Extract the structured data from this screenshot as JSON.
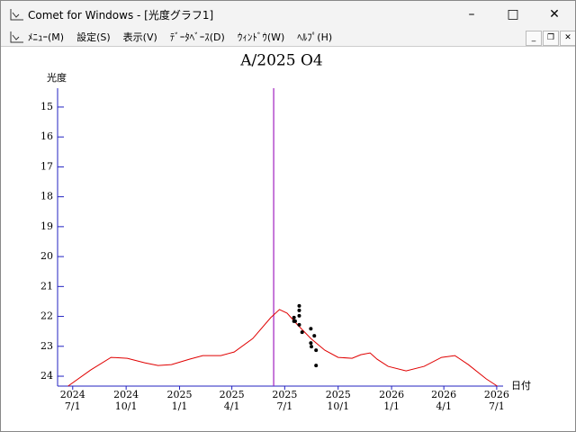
{
  "window": {
    "title": "Comet for Windows - [光度グラフ1]",
    "menu": [
      "ﾒﾆｭｰ(M)",
      "設定(S)",
      "表示(V)",
      "ﾃﾞｰﾀﾍﾞｰｽ(D)",
      "ｳｨﾝﾄﾞｳ(W)",
      "ﾍﾙﾌﾟ(H)"
    ]
  },
  "chart_data": {
    "type": "line",
    "title": "A/2025 O4",
    "y_label": "光度",
    "x_label": "日付",
    "color": "#e00000",
    "x": [
      "2024-06-23",
      "2024-08-01",
      "2024-09-05",
      "2024-10-03",
      "2024-11-02",
      "2024-11-25",
      "2024-12-18",
      "2025-01-18",
      "2025-02-10",
      "2025-03-13",
      "2025-04-05",
      "2025-05-07",
      "2025-06-07",
      "2025-06-22",
      "2025-07-05",
      "2025-07-23",
      "2025-08-15",
      "2025-09-08",
      "2025-10-01",
      "2025-10-25",
      "2025-11-09",
      "2025-11-25",
      "2025-12-07",
      "2025-12-26",
      "2026-01-26",
      "2026-02-26",
      "2026-03-28",
      "2026-04-20",
      "2026-05-13",
      "2026-06-13",
      "2026-07-02"
    ],
    "values": [
      24.33,
      23.79,
      23.37,
      23.4,
      23.55,
      23.64,
      23.61,
      23.43,
      23.31,
      23.31,
      23.19,
      22.74,
      22.04,
      21.77,
      21.89,
      22.28,
      22.74,
      23.13,
      23.37,
      23.4,
      23.28,
      23.22,
      23.43,
      23.67,
      23.82,
      23.67,
      23.37,
      23.31,
      23.61,
      24.09,
      24.33
    ],
    "observations": {
      "color": "#000000",
      "x": [
        "2025-07-17",
        "2025-07-17",
        "2025-07-19",
        "2025-07-26",
        "2025-07-26",
        "2025-07-26",
        "2025-07-26",
        "2025-07-31",
        "2025-08-15",
        "2025-08-15",
        "2025-08-16",
        "2025-08-21",
        "2025-08-24",
        "2025-08-24"
      ],
      "values": [
        22.04,
        22.16,
        22.16,
        21.65,
        21.8,
        21.98,
        22.28,
        22.53,
        22.41,
        22.89,
        23.01,
        22.65,
        23.13,
        23.64
      ]
    },
    "marker_line": {
      "x": "2025-06-12",
      "color": "#a020c0"
    },
    "xlim": [
      "2024-06-05",
      "2026-07-12"
    ],
    "xticks": [
      {
        "value": "2024-07-01",
        "label": "7/1",
        "year": "2024"
      },
      {
        "value": "2024-10-01",
        "label": "10/1",
        "year": "2024"
      },
      {
        "value": "2025-01-01",
        "label": "1/1",
        "year": "2025"
      },
      {
        "value": "2025-04-01",
        "label": "4/1",
        "year": "2025"
      },
      {
        "value": "2025-07-01",
        "label": "7/1",
        "year": "2025"
      },
      {
        "value": "2025-10-01",
        "label": "10/1",
        "year": "2025"
      },
      {
        "value": "2026-01-01",
        "label": "1/1",
        "year": "2026"
      },
      {
        "value": "2026-04-01",
        "label": "4/1",
        "year": "2026"
      },
      {
        "value": "2026-07-01",
        "label": "7/1",
        "year": "2026"
      }
    ],
    "ylim": [
      24.33,
      14.37
    ],
    "yticks": [
      15,
      16,
      17,
      18,
      19,
      20,
      21,
      22,
      23,
      24
    ]
  }
}
